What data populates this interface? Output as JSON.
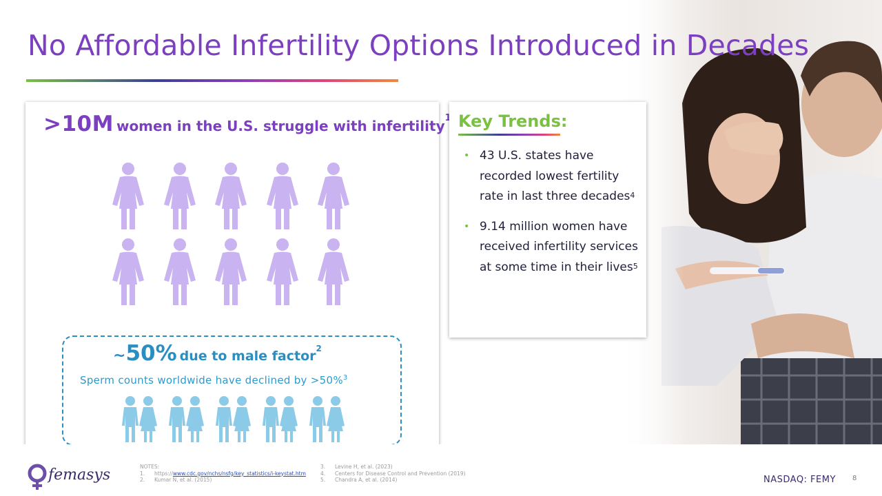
{
  "title": "No Affordable Infertility Options Introduced in Decades",
  "colors": {
    "title": "#7b3fbf",
    "accent_green": "#7ac142",
    "male_blue": "#2a8ec0",
    "woman_icon": "#c9b3f0",
    "couple_icon": "#8ccbe8"
  },
  "left_card": {
    "stat_big": ">10M",
    "stat_text": "women in the U.S. struggle with infertility",
    "stat_sup": "1",
    "women_icon_count": 10,
    "male_box": {
      "tilde": "~",
      "percent": "50%",
      "text": "due to male factor",
      "sup": "2",
      "sperm_text": "Sperm counts worldwide have declined by >50%",
      "sperm_sup": "3",
      "couple_icon_count": 5
    }
  },
  "key_trends": {
    "title": "Key Trends:",
    "items": [
      {
        "text": "43 U.S. states have recorded lowest fertility rate in last three decades",
        "sup": "4"
      },
      {
        "text": "9.14 million women have received infertility services at some time in their lives",
        "sup": "5"
      }
    ]
  },
  "footer": {
    "logo_text": "femasys",
    "notes_title": "NOTES:",
    "notes_left": [
      {
        "num": "1.",
        "prefix": "https://",
        "link": "www.cdc.gov/nchs/nsfg/key_statistics/i-keystat.htm"
      },
      {
        "num": "2.",
        "text": "Kumar N, et al. (2015)"
      }
    ],
    "notes_right": [
      {
        "num": "3.",
        "text": "Levine H, et al. (2023)"
      },
      {
        "num": "4.",
        "text": "Centers for Disease Control and Prevention (2019)"
      },
      {
        "num": "5.",
        "text": "Chandra A, et al. (2014)"
      }
    ],
    "ticker": "NASDAQ: FEMY",
    "page_number": "8"
  }
}
